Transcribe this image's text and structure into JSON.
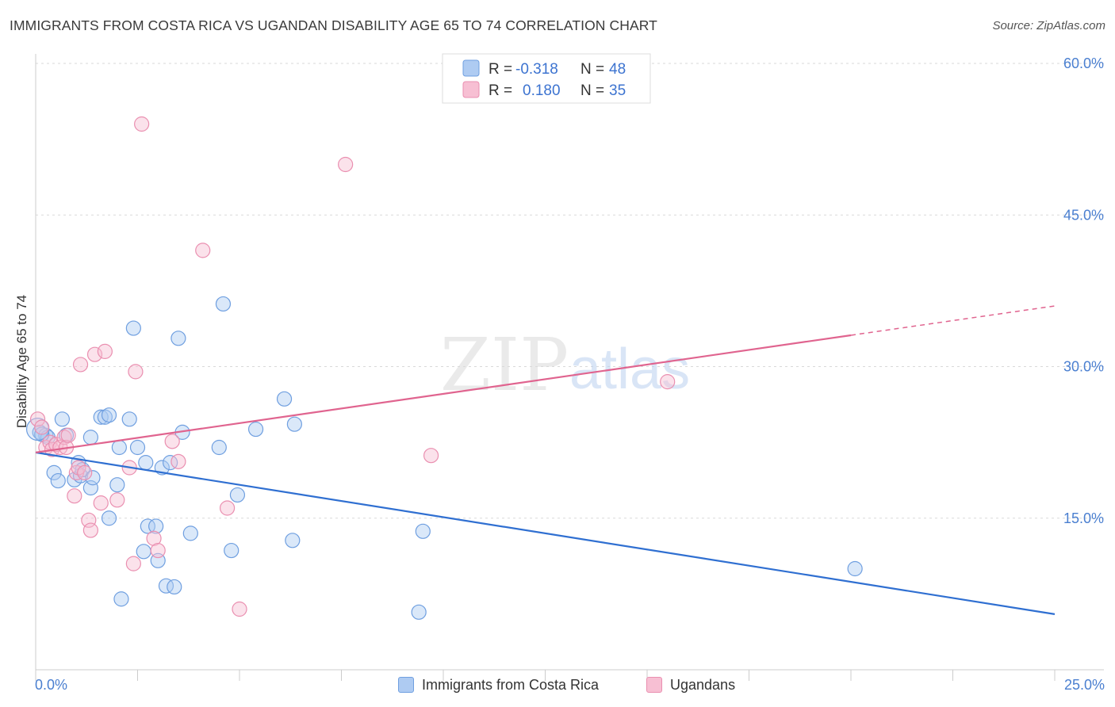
{
  "title": "IMMIGRANTS FROM COSTA RICA VS UGANDAN DISABILITY AGE 65 TO 74 CORRELATION CHART",
  "source": "Source: ZipAtlas.com",
  "watermark": {
    "zip": "ZIP",
    "atlas": "atlas"
  },
  "colors": {
    "blue_fill": "#aecbf2",
    "blue_stroke": "#6f9fe0",
    "blue_line": "#2f6fd1",
    "pink_fill": "#f7bfd3",
    "pink_stroke": "#ea8fb0",
    "pink_line": "#e0648f",
    "tick": "#4a7fd0",
    "grid": "#d9d9d9"
  },
  "legend": {
    "r_label": "R =",
    "n_label": "N =",
    "rows": [
      {
        "r": "-0.318",
        "n": "48"
      },
      {
        "r": "0.180",
        "n": "35"
      }
    ]
  },
  "chart_data": {
    "type": "scatter",
    "title": "IMMIGRANTS FROM COSTA RICA VS UGANDAN DISABILITY AGE 65 TO 74 CORRELATION CHART",
    "xlabel": "",
    "ylabel": "Disability Age 65 to 74",
    "xlim": [
      0,
      25
    ],
    "ylim": [
      0,
      61
    ],
    "x_tick_labels": [
      "0.0%",
      "25.0%"
    ],
    "y_ticks": [
      15,
      30,
      45,
      60
    ],
    "y_tick_labels": [
      "15.0%",
      "30.0%",
      "45.0%",
      "60.0%"
    ],
    "grid": true,
    "legend_position": "top-center",
    "series": [
      {
        "name": "Immigrants from Costa Rica",
        "color": "blue",
        "trend": {
          "x": [
            0,
            25
          ],
          "y": [
            21.5,
            5.5
          ],
          "solid_until": 25
        },
        "points": [
          {
            "x": 0.1,
            "y": 23.5
          },
          {
            "x": 0.25,
            "y": 23.2
          },
          {
            "x": 0.3,
            "y": 23.0
          },
          {
            "x": 0.45,
            "y": 19.5
          },
          {
            "x": 0.55,
            "y": 18.7
          },
          {
            "x": 0.65,
            "y": 24.8
          },
          {
            "x": 0.75,
            "y": 23.2
          },
          {
            "x": 0.95,
            "y": 18.8
          },
          {
            "x": 1.05,
            "y": 20.5
          },
          {
            "x": 1.1,
            "y": 19.2
          },
          {
            "x": 1.15,
            "y": 19.8
          },
          {
            "x": 1.35,
            "y": 18.0
          },
          {
            "x": 1.4,
            "y": 19.0
          },
          {
            "x": 1.35,
            "y": 23.0
          },
          {
            "x": 1.6,
            "y": 25.0
          },
          {
            "x": 1.7,
            "y": 25.0
          },
          {
            "x": 1.8,
            "y": 25.2
          },
          {
            "x": 1.8,
            "y": 15.0
          },
          {
            "x": 2.0,
            "y": 18.3
          },
          {
            "x": 2.05,
            "y": 22.0
          },
          {
            "x": 2.1,
            "y": 7.0
          },
          {
            "x": 2.3,
            "y": 24.8
          },
          {
            "x": 2.4,
            "y": 33.8
          },
          {
            "x": 2.5,
            "y": 22.0
          },
          {
            "x": 2.65,
            "y": 11.7
          },
          {
            "x": 2.7,
            "y": 20.5
          },
          {
            "x": 2.75,
            "y": 14.2
          },
          {
            "x": 2.95,
            "y": 14.2
          },
          {
            "x": 3.0,
            "y": 10.8
          },
          {
            "x": 3.1,
            "y": 20.0
          },
          {
            "x": 3.2,
            "y": 8.3
          },
          {
            "x": 3.3,
            "y": 20.5
          },
          {
            "x": 3.4,
            "y": 8.2
          },
          {
            "x": 3.5,
            "y": 32.8
          },
          {
            "x": 3.6,
            "y": 23.5
          },
          {
            "x": 3.8,
            "y": 13.5
          },
          {
            "x": 4.5,
            "y": 22.0
          },
          {
            "x": 4.6,
            "y": 36.2
          },
          {
            "x": 4.8,
            "y": 11.8
          },
          {
            "x": 4.95,
            "y": 17.3
          },
          {
            "x": 5.4,
            "y": 23.8
          },
          {
            "x": 6.1,
            "y": 26.8
          },
          {
            "x": 6.3,
            "y": 12.8
          },
          {
            "x": 6.35,
            "y": 24.3
          },
          {
            "x": 9.4,
            "y": 5.7
          },
          {
            "x": 9.5,
            "y": 13.7
          },
          {
            "x": 20.1,
            "y": 10.0
          },
          {
            "x": 0.15,
            "y": 23.3
          }
        ]
      },
      {
        "name": "Ugandans",
        "color": "pink",
        "trend": {
          "x": [
            0,
            25
          ],
          "y": [
            21.5,
            36.0
          ],
          "solid_until": 20
        },
        "points": [
          {
            "x": 0.05,
            "y": 24.8
          },
          {
            "x": 0.15,
            "y": 24.0
          },
          {
            "x": 0.25,
            "y": 22.0
          },
          {
            "x": 0.35,
            "y": 22.5
          },
          {
            "x": 0.4,
            "y": 21.8
          },
          {
            "x": 0.5,
            "y": 22.3
          },
          {
            "x": 0.6,
            "y": 22.0
          },
          {
            "x": 0.7,
            "y": 23.0
          },
          {
            "x": 0.75,
            "y": 22.0
          },
          {
            "x": 0.8,
            "y": 23.2
          },
          {
            "x": 0.95,
            "y": 17.2
          },
          {
            "x": 1.0,
            "y": 19.5
          },
          {
            "x": 1.05,
            "y": 20.0
          },
          {
            "x": 1.1,
            "y": 30.2
          },
          {
            "x": 1.2,
            "y": 19.5
          },
          {
            "x": 1.3,
            "y": 14.8
          },
          {
            "x": 1.35,
            "y": 13.8
          },
          {
            "x": 1.45,
            "y": 31.2
          },
          {
            "x": 1.6,
            "y": 16.5
          },
          {
            "x": 1.7,
            "y": 31.5
          },
          {
            "x": 2.0,
            "y": 16.8
          },
          {
            "x": 2.3,
            "y": 20.0
          },
          {
            "x": 2.4,
            "y": 10.5
          },
          {
            "x": 2.45,
            "y": 29.5
          },
          {
            "x": 2.6,
            "y": 54.0
          },
          {
            "x": 2.9,
            "y": 13.0
          },
          {
            "x": 3.0,
            "y": 11.8
          },
          {
            "x": 3.35,
            "y": 22.6
          },
          {
            "x": 3.5,
            "y": 20.6
          },
          {
            "x": 4.1,
            "y": 41.5
          },
          {
            "x": 4.7,
            "y": 16.0
          },
          {
            "x": 5.0,
            "y": 6.0
          },
          {
            "x": 7.6,
            "y": 50.0
          },
          {
            "x": 9.7,
            "y": 21.2
          },
          {
            "x": 15.5,
            "y": 28.5
          }
        ]
      }
    ]
  }
}
